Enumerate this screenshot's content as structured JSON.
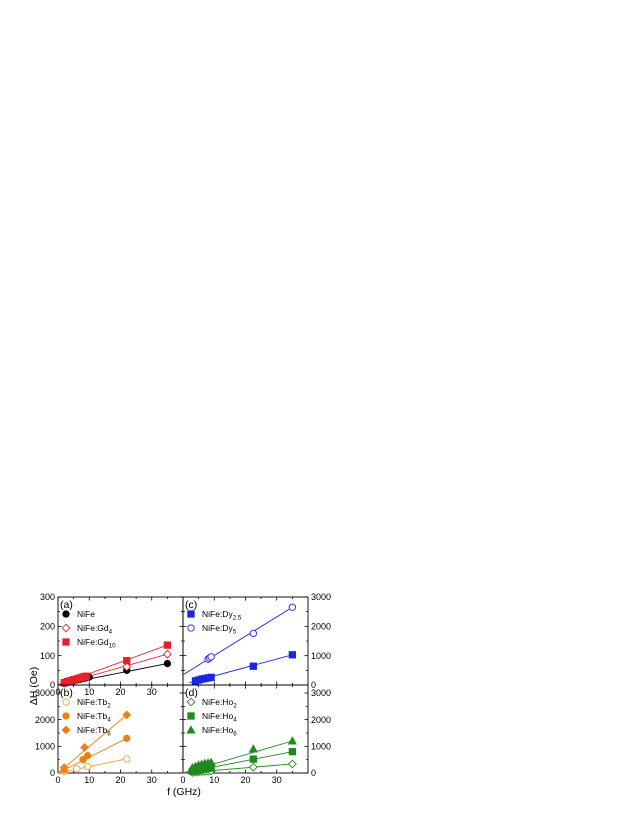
{
  "figure": {
    "xlabel": "f (GHz)",
    "ylabel": "ΔH (Oe)"
  },
  "chart_data": [
    {
      "panel": "(a)",
      "type": "scatter",
      "xlim": [
        0,
        40
      ],
      "ylim": [
        0,
        300
      ],
      "xticks": [
        "0",
        "10",
        "20",
        "30"
      ],
      "yticks": [
        "0",
        "100",
        "200",
        "300"
      ],
      "y_axis_side": "left",
      "legend_position": "top-left",
      "series": [
        {
          "name": "NiFe",
          "sub": "",
          "color": "#000000",
          "marker": "circle-filled",
          "x": [
            2,
            3,
            4,
            5,
            6,
            7,
            8,
            9,
            10,
            22,
            35
          ],
          "y": [
            5,
            9,
            12,
            14,
            17,
            19,
            22,
            24,
            27,
            50,
            73
          ],
          "fit": [
            [
              0,
              0
            ],
            [
              35,
              73
            ]
          ]
        },
        {
          "name": "NiFe:Gd",
          "sub": "4",
          "color": "#e8202a",
          "marker": "diamond-open",
          "x": [
            2,
            3,
            4,
            5,
            6,
            7,
            8,
            9,
            22,
            35
          ],
          "y": [
            6,
            10,
            13,
            16,
            19,
            22,
            25,
            27,
            62,
            105
          ],
          "fit": [
            [
              0,
              0
            ],
            [
              35,
              105
            ]
          ]
        },
        {
          "name": "NiFe:Gd",
          "sub": "10",
          "color": "#e8202a",
          "marker": "square-filled",
          "x": [
            2,
            3,
            4,
            5,
            6,
            7,
            8,
            9,
            22,
            35
          ],
          "y": [
            8,
            12,
            15,
            18,
            21,
            24,
            28,
            30,
            83,
            136
          ],
          "fit": [
            [
              0,
              0
            ],
            [
              35,
              136
            ]
          ]
        }
      ]
    },
    {
      "panel": "(c)",
      "type": "scatter",
      "xlim": [
        0,
        40
      ],
      "ylim": [
        0,
        3000
      ],
      "xticks": [],
      "yticks": [
        "0",
        "1000",
        "2000",
        "3000"
      ],
      "y_axis_side": "right",
      "legend_position": "top-left",
      "series": [
        {
          "name": "NiFe:Dy",
          "sub": "2.5",
          "color": "#1a26e0",
          "marker": "square-filled",
          "x": [
            4,
            5,
            6,
            7,
            8,
            9,
            22.5,
            35
          ],
          "y": [
            140,
            170,
            200,
            220,
            240,
            260,
            640,
            1030
          ],
          "fit": [
            [
              2,
              80
            ],
            [
              35,
              1030
            ]
          ]
        },
        {
          "name": "NiFe:Dy",
          "sub": "5",
          "color": "#1a26e0",
          "marker": "circle-open",
          "x": [
            8,
            8.5,
            9,
            22.5,
            35
          ],
          "y": [
            880,
            920,
            960,
            1760,
            2650
          ],
          "fit": [
            [
              0,
              350
            ],
            [
              35,
              2650
            ]
          ]
        }
      ]
    },
    {
      "panel": "(b)",
      "type": "scatter",
      "xlim": [
        0,
        40
      ],
      "ylim": [
        0,
        3300
      ],
      "xticks": [
        "0",
        "10",
        "20",
        "30"
      ],
      "yticks": [
        "0",
        "1000",
        "2000",
        "3000"
      ],
      "y_axis_side": "left",
      "legend_position": "top-left",
      "series": [
        {
          "name": "NiFe:Tb",
          "sub": "2",
          "color": "#f0a040",
          "marker": "circle-open",
          "x": [
            2,
            6,
            9.5,
            22
          ],
          "y": [
            55,
            160,
            240,
            530
          ],
          "fit": [
            [
              0,
              0
            ],
            [
              22,
              530
            ]
          ]
        },
        {
          "name": "NiFe:Tb",
          "sub": "4",
          "color": "#f08010",
          "marker": "circle-filled",
          "x": [
            2,
            8,
            9.5,
            22
          ],
          "y": [
            120,
            500,
            650,
            1300
          ],
          "fit": [
            [
              0,
              0
            ],
            [
              22,
              1300
            ]
          ]
        },
        {
          "name": "NiFe:Tb",
          "sub": "6",
          "color": "#f08010",
          "marker": "diamond-filled",
          "x": [
            2,
            8.5,
            22
          ],
          "y": [
            200,
            960,
            2180
          ],
          "fit": [
            [
              0,
              0
            ],
            [
              22,
              2180
            ]
          ]
        }
      ]
    },
    {
      "panel": "(d)",
      "type": "scatter",
      "xlim": [
        0,
        40
      ],
      "ylim": [
        0,
        3300
      ],
      "xticks": [
        "0",
        "10",
        "20",
        "30"
      ],
      "yticks": [
        "0",
        "1000",
        "2000",
        "3000"
      ],
      "y_axis_side": "right",
      "legend_position": "top-left",
      "series": [
        {
          "name": "NiFe:Ho",
          "sub": "2",
          "color": "#1f8a1f",
          "marker": "diamond-open",
          "x": [
            3,
            4,
            5,
            6,
            7,
            8,
            9,
            22.5,
            35
          ],
          "y": [
            20,
            30,
            40,
            50,
            60,
            65,
            75,
            220,
            340
          ],
          "fit": [
            [
              0,
              0
            ],
            [
              35,
              340
            ]
          ]
        },
        {
          "name": "NiFe:Ho",
          "sub": "4",
          "color": "#1f8a1f",
          "marker": "square-filled",
          "x": [
            3,
            4,
            5,
            6,
            7,
            8,
            9,
            22.5,
            35
          ],
          "y": [
            60,
            80,
            100,
            130,
            150,
            170,
            190,
            520,
            800
          ],
          "fit": [
            [
              0,
              0
            ],
            [
              35,
              800
            ]
          ]
        },
        {
          "name": "NiFe:Ho",
          "sub": "6",
          "color": "#1f8a1f",
          "marker": "triangle-filled",
          "x": [
            3,
            4,
            5,
            6,
            7,
            8,
            9,
            22.5,
            35
          ],
          "y": [
            200,
            250,
            300,
            330,
            360,
            380,
            400,
            900,
            1200
          ],
          "fit": [
            [
              0,
              0
            ],
            [
              35,
              1200
            ]
          ]
        }
      ]
    }
  ]
}
